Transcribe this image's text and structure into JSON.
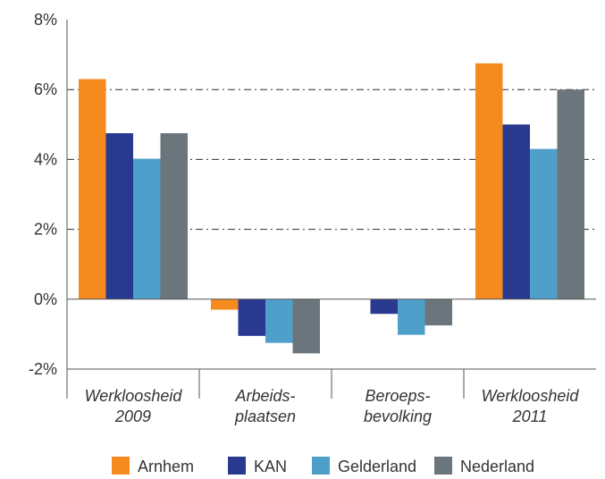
{
  "chart_data": {
    "type": "bar",
    "categories": [
      [
        "Werkloosheid",
        "2009"
      ],
      [
        "Arbeids-",
        "plaatsen"
      ],
      [
        "Beroeps-",
        "bevolking"
      ],
      [
        "Werkloosheid",
        "2011"
      ]
    ],
    "series": [
      {
        "name": "Arnhem",
        "color": "#F58A1F",
        "values": [
          6.3,
          -0.3,
          0.0,
          6.75
        ]
      },
      {
        "name": "KAN",
        "color": "#2A3990",
        "values": [
          4.75,
          -1.05,
          -0.42,
          5.0
        ]
      },
      {
        "name": "Gelderland",
        "color": "#4F9FCB",
        "values": [
          4.02,
          -1.25,
          -1.02,
          4.3
        ]
      },
      {
        "name": "Nederland",
        "color": "#6B757C",
        "values": [
          4.75,
          -1.55,
          -0.75,
          6.0
        ]
      }
    ],
    "ylim": [
      -2,
      8
    ],
    "yticks": [
      -2,
      0,
      2,
      4,
      6,
      8
    ],
    "ytick_labels": [
      "-2%",
      "0%",
      "2%",
      "4%",
      "6%",
      "8%"
    ],
    "title": "",
    "xlabel": "",
    "ylabel": "",
    "gridlines": "dash-dot at 2%, 4%, 6%",
    "legend_position": "bottom"
  }
}
